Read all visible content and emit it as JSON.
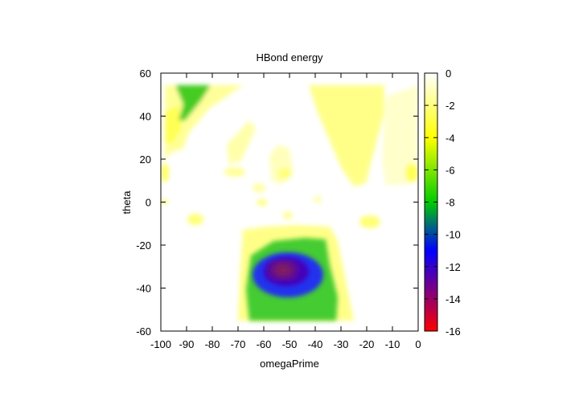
{
  "chart_data": {
    "type": "heatmap",
    "title": "HBond energy",
    "xlabel": "omegaPrime",
    "ylabel": "theta",
    "xlim": [
      -100,
      0
    ],
    "ylim": [
      -60,
      60
    ],
    "xticks": [
      -100,
      -90,
      -80,
      -70,
      -60,
      -50,
      -40,
      -30,
      -20,
      -10,
      0
    ],
    "yticks": [
      -60,
      -40,
      -20,
      0,
      20,
      40,
      60
    ],
    "colorbar": {
      "range": [
        -16,
        0
      ],
      "ticks": [
        0,
        -2,
        -4,
        -6,
        -8,
        -10,
        -12,
        -14,
        -16
      ],
      "stops": [
        {
          "value": 0,
          "color": "#ffffff"
        },
        {
          "value": -4,
          "color": "#ffff00"
        },
        {
          "value": -8,
          "color": "#00cc00"
        },
        {
          "value": -11,
          "color": "#0000ff"
        },
        {
          "value": -16,
          "color": "#ff0000"
        }
      ]
    },
    "regions": [
      {
        "name": "deep well",
        "x": -53,
        "y": -33,
        "value": -14
      },
      {
        "name": "blue well",
        "x": -51,
        "y": -34,
        "value": -11.5
      },
      {
        "name": "green basin",
        "x": -50,
        "y": -35,
        "value": -8
      },
      {
        "name": "green patch",
        "x": -90,
        "y": 45,
        "value": -6.5
      },
      {
        "name": "yellow wedge",
        "x": -28,
        "y": 35,
        "value": -3.5
      }
    ]
  }
}
